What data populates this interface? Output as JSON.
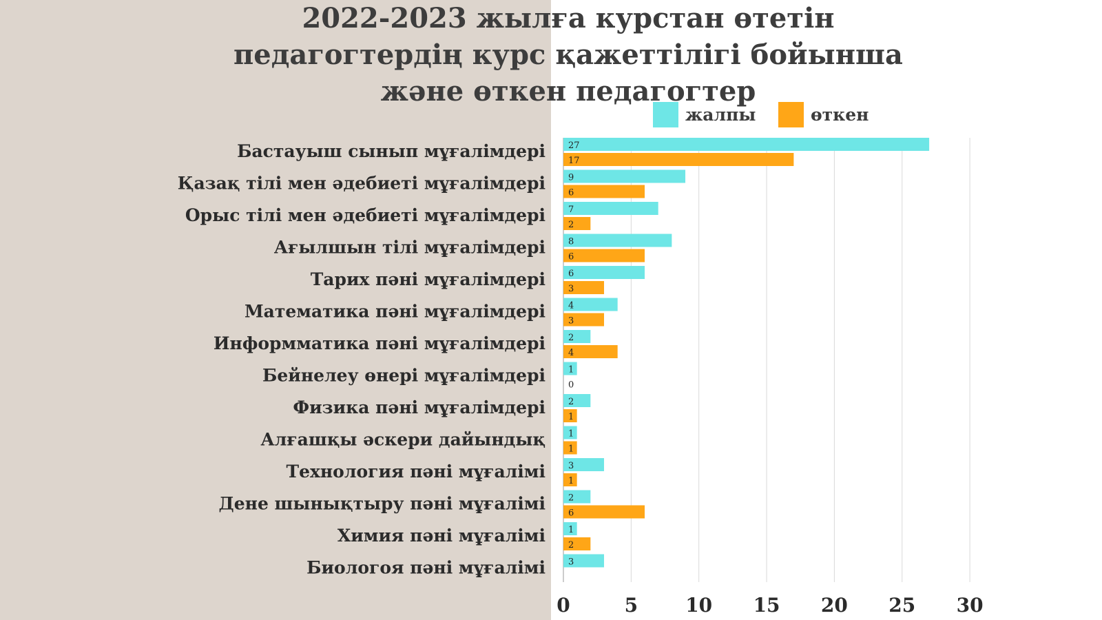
{
  "colors": {
    "left_background": "#ddd5cd",
    "right_background": "#ffffff",
    "jalpy": "#6ee6e6",
    "otken": "#ffa617",
    "text": "#3d3d3d",
    "grid": "#d9d9d9"
  },
  "chart_data": {
    "type": "bar",
    "orientation": "horizontal",
    "title": "2022-2023 жылға курстан өтетін педагогтердің курс қажеттілігі бойынша және өткен педагогтер",
    "title_lines": [
      "2022-2023 жылға курстан өтетін",
      "педагогтердің курс қажеттілігі бойынша",
      "және өткен педагогтер"
    ],
    "legend_position": "top",
    "grid": true,
    "xlim": [
      0,
      30
    ],
    "x_ticks": [
      "0",
      "5",
      "10",
      "15",
      "20",
      "25",
      "30"
    ],
    "categories": [
      "Бастауыш сынып мұғалімдері",
      "Қазақ тілі мен әдебиеті мұғалімдері",
      "Орыс тілі мен әдебиеті мұғалімдері",
      "Ағылшын тілі мұғалімдері",
      "Тарих пәні мұғалімдері",
      "Математика пәні мұғалімдері",
      "Информматика пәні мұғалімдері",
      "Бейнелеу өнері мұғалімдері",
      "Физика пәні мұғалімдері",
      "Алғашқы әскери дайындық",
      "Технология пәні мұғалімі",
      "Дене шынықтыру пәні мұғалімі",
      "Химия пәні мұғалімі",
      "Биологоя пәні мұғалімі"
    ],
    "series": [
      {
        "name": "жалпы",
        "color": "#6ee6e6",
        "values": [
          27,
          9,
          7,
          8,
          6,
          4,
          2,
          1,
          2,
          1,
          3,
          2,
          1,
          3
        ],
        "labels": [
          "27",
          "9",
          "7",
          "8",
          "6",
          "4",
          "2",
          "1",
          "2",
          "1",
          "3",
          "2",
          "1",
          "3"
        ]
      },
      {
        "name": "өткен",
        "color": "#ffa617",
        "values": [
          17,
          6,
          2,
          6,
          3,
          3,
          4,
          0,
          1,
          1,
          1,
          6,
          2,
          null
        ],
        "labels": [
          "17",
          "6",
          "2",
          "6",
          "3",
          "3",
          "4",
          "0",
          "1",
          "1",
          "1",
          "6",
          "2",
          null
        ]
      }
    ]
  }
}
